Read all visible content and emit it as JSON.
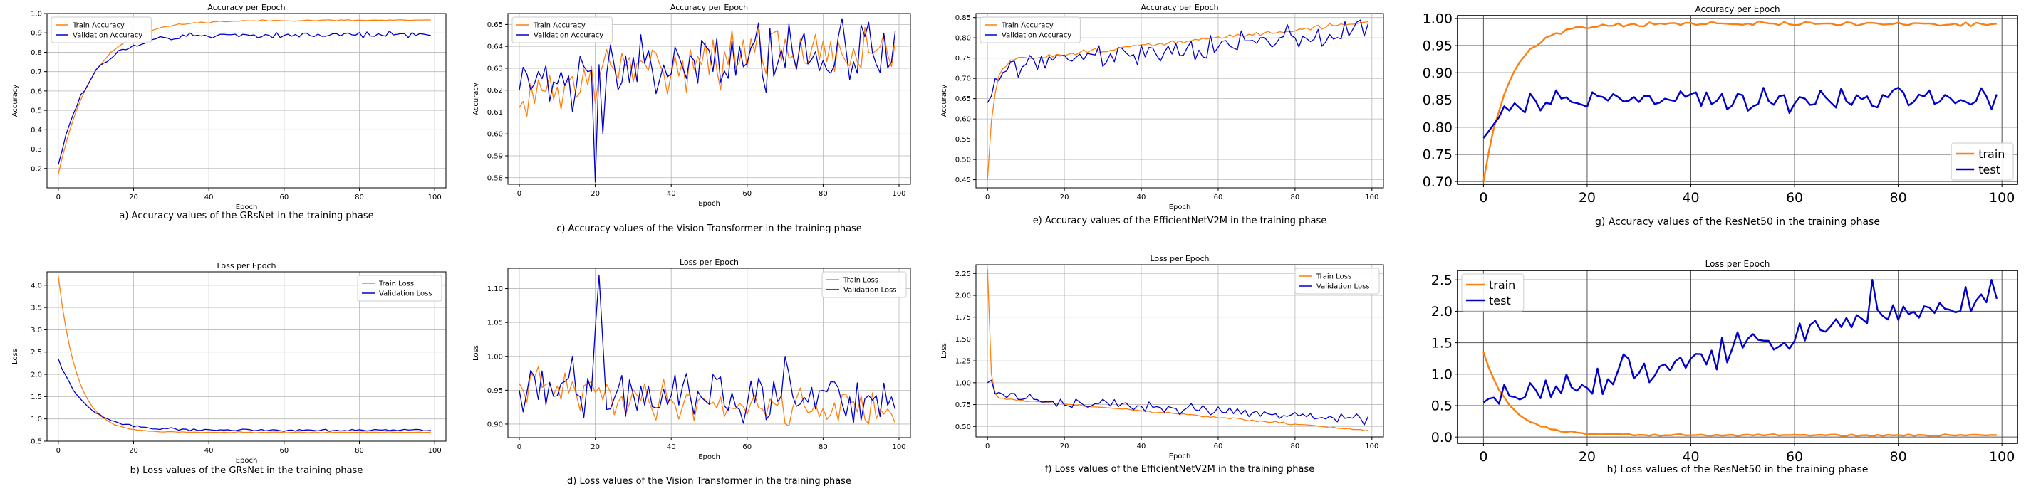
{
  "chart_data": [
    {
      "type": "line",
      "id": "a",
      "title": "Accuracy per Epoch",
      "xlabel": "Epoch",
      "ylabel": "Accuracy",
      "caption": "a) Accuracy values of the GRsNet in the training phase",
      "xlim": [
        -3,
        103
      ],
      "ylim": [
        0.1,
        1.0
      ],
      "xticks": [
        0,
        20,
        40,
        60,
        80,
        100
      ],
      "yticks": [
        0.2,
        0.3,
        0.4,
        0.5,
        0.6,
        0.7,
        0.8,
        0.9,
        1.0
      ],
      "ytick_labels": [
        "0.2",
        "0.3",
        "0.4",
        "0.5",
        "0.6",
        "0.7",
        "0.8",
        "0.9",
        "1.0"
      ],
      "grid": true,
      "legend_position": "top-left",
      "series": [
        {
          "name": "Train Accuracy",
          "color": "#ff7f0e",
          "gen": {
            "kind": "sat",
            "start": 0.17,
            "end": 0.965,
            "tau": 9,
            "noise": 0.002,
            "seed": 11
          }
        },
        {
          "name": "Validation Accuracy",
          "color": "#0000cc",
          "gen": {
            "kind": "sat",
            "start": 0.22,
            "end": 0.89,
            "tau": 8,
            "noise": 0.008,
            "seed": 12
          }
        }
      ]
    },
    {
      "type": "line",
      "id": "b",
      "title": "Loss per Epoch",
      "xlabel": "Epoch",
      "ylabel": "Loss",
      "caption": "b) Loss values of the GRsNet in the training phase",
      "xlim": [
        -3,
        103
      ],
      "ylim": [
        0.5,
        4.3
      ],
      "xticks": [
        0,
        20,
        40,
        60,
        80,
        100
      ],
      "yticks": [
        0.5,
        1.0,
        1.5,
        2.0,
        2.5,
        3.0,
        3.5,
        4.0
      ],
      "ytick_labels": [
        "0.5",
        "1.0",
        "1.5",
        "2.0",
        "2.5",
        "3.0",
        "3.5",
        "4.0"
      ],
      "grid": true,
      "legend_position": "top-right",
      "series": [
        {
          "name": "Train Loss",
          "color": "#ff7f0e",
          "gen": {
            "kind": "sat",
            "start": 4.2,
            "end": 0.7,
            "tau": 5,
            "noise": 0.005,
            "seed": 21
          }
        },
        {
          "name": "Validation Loss",
          "color": "#0000cc",
          "gen": {
            "kind": "sat",
            "start": 2.35,
            "end": 0.75,
            "tau": 7,
            "noise": 0.012,
            "seed": 22
          }
        }
      ]
    },
    {
      "type": "line",
      "id": "c",
      "title": "Accuracy per Epoch",
      "xlabel": "Epoch",
      "ylabel": "Accuracy",
      "caption": "c) Accuracy values of the Vision Transformer in the training phase",
      "xlim": [
        -3,
        103
      ],
      "ylim": [
        0.577,
        0.655
      ],
      "xticks": [
        0,
        20,
        40,
        60,
        80,
        100
      ],
      "yticks": [
        0.58,
        0.59,
        0.6,
        0.61,
        0.62,
        0.63,
        0.64,
        0.65
      ],
      "ytick_labels": [
        "0.58",
        "0.59",
        "0.60",
        "0.61",
        "0.62",
        "0.63",
        "0.64",
        "0.65"
      ],
      "grid": true,
      "legend_position": "top-left",
      "series": [
        {
          "name": "Train Accuracy",
          "color": "#ff7f0e",
          "gen": {
            "kind": "sat",
            "start": 0.612,
            "end": 0.64,
            "tau": 30,
            "noise": 0.006,
            "seed": 31
          }
        },
        {
          "name": "Validation Accuracy",
          "color": "#0000cc",
          "gen": {
            "kind": "sat",
            "start": 0.62,
            "end": 0.637,
            "tau": 25,
            "noise": 0.008,
            "seed": 32,
            "spikes": [
              [
                20,
                0.578
              ],
              [
                22,
                0.6
              ],
              [
                14,
                0.61
              ],
              [
                8,
                0.615
              ]
            ]
          }
        }
      ]
    },
    {
      "type": "line",
      "id": "d",
      "title": "Loss per Epoch",
      "xlabel": "Epoch",
      "ylabel": "Loss",
      "caption": "d) Loss values of the Vision Transformer in the training phase",
      "xlim": [
        -3,
        103
      ],
      "ylim": [
        0.88,
        1.13
      ],
      "xticks": [
        0,
        20,
        40,
        60,
        80,
        100
      ],
      "yticks": [
        0.9,
        0.95,
        1.0,
        1.05,
        1.1
      ],
      "ytick_labels": [
        "0.90",
        "0.95",
        "1.00",
        "1.05",
        "1.10"
      ],
      "grid": true,
      "legend_position": "top-right",
      "series": [
        {
          "name": "Train Loss",
          "color": "#ff7f0e",
          "gen": {
            "kind": "sat",
            "start": 0.96,
            "end": 0.92,
            "tau": 40,
            "noise": 0.014,
            "seed": 41
          }
        },
        {
          "name": "Validation Loss",
          "color": "#0000cc",
          "gen": {
            "kind": "sat",
            "start": 0.95,
            "end": 0.935,
            "tau": 30,
            "noise": 0.018,
            "seed": 42,
            "spikes": [
              [
                20,
                1.04
              ],
              [
                21,
                1.12
              ],
              [
                22,
                1.02
              ],
              [
                14,
                1.0
              ],
              [
                70,
                1.0
              ]
            ]
          }
        }
      ]
    },
    {
      "type": "line",
      "id": "e",
      "title": "Accuracy per Epoch",
      "xlabel": "Epoch",
      "ylabel": "Accuracy",
      "caption": "e) Accuracy values of the EfficientNetV2M in the training phase",
      "xlim": [
        -3,
        103
      ],
      "ylim": [
        0.43,
        0.86
      ],
      "xticks": [
        0,
        20,
        40,
        60,
        80,
        100
      ],
      "yticks": [
        0.45,
        0.5,
        0.55,
        0.6,
        0.65,
        0.7,
        0.75,
        0.8,
        0.85
      ],
      "ytick_labels": [
        "0.45",
        "0.50",
        "0.55",
        "0.60",
        "0.65",
        "0.70",
        "0.75",
        "0.80",
        "0.85"
      ],
      "grid": true,
      "legend_position": "top-left",
      "series": [
        {
          "name": "Train Accuracy",
          "color": "#ff7f0e",
          "gen": {
            "kind": "satlin",
            "start": 0.45,
            "end": 0.74,
            "tau": 1.5,
            "slope": 0.001,
            "noise": 0.003,
            "seed": 51
          }
        },
        {
          "name": "Validation Accuracy",
          "color": "#0000cc",
          "gen": {
            "kind": "satlin",
            "start": 0.64,
            "end": 0.73,
            "tau": 3,
            "slope": 0.0009,
            "noise": 0.014,
            "seed": 52
          }
        }
      ]
    },
    {
      "type": "line",
      "id": "f",
      "title": "Loss per Epoch",
      "xlabel": "Epoch",
      "ylabel": "Loss",
      "caption": "f) Loss values of the EfficientNetV2M in the training phase",
      "xlim": [
        -3,
        103
      ],
      "ylim": [
        0.38,
        2.35
      ],
      "xticks": [
        0,
        20,
        40,
        60,
        80,
        100
      ],
      "yticks": [
        0.5,
        0.75,
        1.0,
        1.25,
        1.5,
        1.75,
        2.0,
        2.25
      ],
      "ytick_labels": [
        "0.50",
        "0.75",
        "1.00",
        "1.25",
        "1.50",
        "1.75",
        "2.00",
        "2.25"
      ],
      "grid": true,
      "legend_position": "top-right",
      "series": [
        {
          "name": "Train Loss",
          "color": "#ff7f0e",
          "gen": {
            "kind": "satlin",
            "start": 2.3,
            "end": 0.83,
            "tau": 0.6,
            "slope": -0.0038,
            "noise": 0.006,
            "seed": 61
          }
        },
        {
          "name": "Validation Loss",
          "color": "#0000cc",
          "gen": {
            "kind": "satlin",
            "start": 1.0,
            "end": 0.83,
            "tau": 4,
            "slope": -0.0025,
            "noise": 0.03,
            "seed": 62
          }
        }
      ]
    },
    {
      "type": "line",
      "id": "g",
      "title": "Accuracy per Epoch",
      "xlabel": "",
      "ylabel": "",
      "caption": "g) Accuracy values of the ResNet50 in the training phase",
      "xlim": [
        -5,
        103
      ],
      "ylim": [
        0.695,
        1.005
      ],
      "xticks": [
        0,
        20,
        40,
        60,
        80,
        100
      ],
      "yticks": [
        0.7,
        0.75,
        0.8,
        0.85,
        0.9,
        0.95,
        1.0
      ],
      "ytick_labels": [
        "0.70",
        "0.75",
        "0.80",
        "0.85",
        "0.90",
        "0.95",
        "1.00"
      ],
      "grid": true,
      "legend_position": "bottom-right",
      "series": [
        {
          "name": "train",
          "color": "#ff7f0e",
          "gen": {
            "kind": "sat",
            "start": 0.7,
            "end": 0.99,
            "tau": 5,
            "noise": 0.002,
            "seed": 71
          }
        },
        {
          "name": "test",
          "color": "#0000cc",
          "gen": {
            "kind": "sat",
            "start": 0.78,
            "end": 0.85,
            "tau": 3,
            "noise": 0.011,
            "seed": 72
          }
        }
      ]
    },
    {
      "type": "line",
      "id": "h",
      "title": "Loss per Epoch",
      "xlabel": "",
      "ylabel": "",
      "caption": "h) Loss values of the ResNet50 in the training phase",
      "xlim": [
        -5,
        103
      ],
      "ylim": [
        -0.1,
        2.65
      ],
      "xticks": [
        0,
        20,
        40,
        60,
        80,
        100
      ],
      "yticks": [
        0.0,
        0.5,
        1.0,
        1.5,
        2.0,
        2.5
      ],
      "ytick_labels": [
        "0.0",
        "0.5",
        "1.0",
        "1.5",
        "2.0",
        "2.5"
      ],
      "grid": true,
      "legend_position": "top-left",
      "series": [
        {
          "name": "train",
          "color": "#ff7f0e",
          "gen": {
            "kind": "sat",
            "start": 1.35,
            "end": 0.03,
            "tau": 5,
            "noise": 0.008,
            "seed": 81
          }
        },
        {
          "name": "test",
          "color": "#0000cc",
          "gen": {
            "kind": "lin",
            "start": 0.55,
            "end": 2.3,
            "noise": 0.12,
            "seed": 82,
            "spikes": [
              [
                75,
                2.5
              ],
              [
                98,
                2.5
              ],
              [
                99,
                2.2
              ]
            ]
          }
        }
      ]
    }
  ]
}
